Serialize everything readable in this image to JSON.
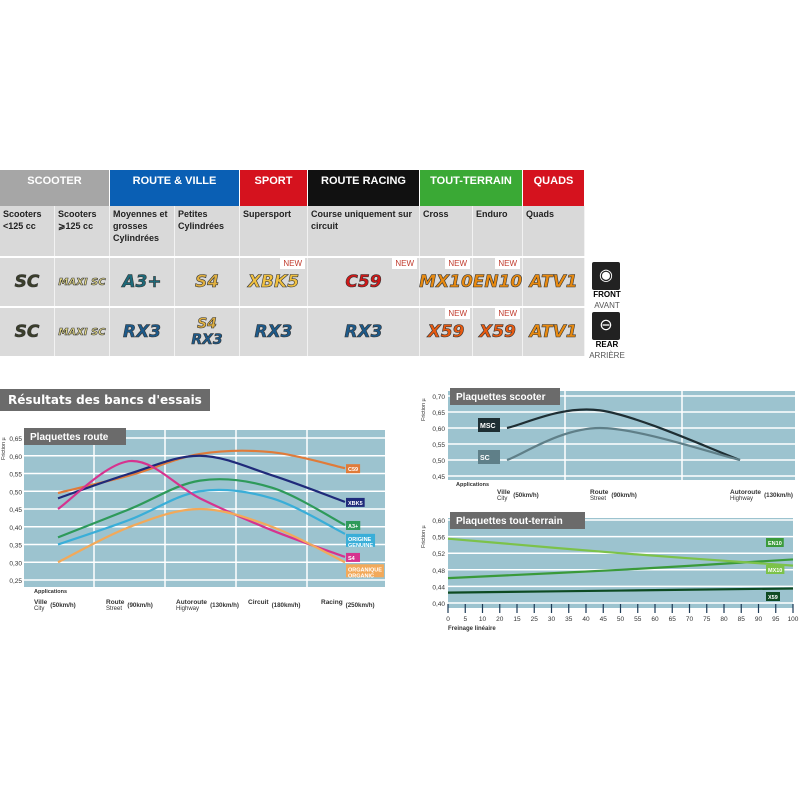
{
  "table": {
    "groups": [
      {
        "label": "SCOOTER",
        "color": "#a6a6a6"
      },
      {
        "label": "ROUTE & VILLE",
        "color": "#0a5fb4"
      },
      {
        "label": "SPORT",
        "color": "#d5121e"
      },
      {
        "label": "ROUTE RACING",
        "color": "#111111"
      },
      {
        "label": "TOUT-TERRAIN",
        "color": "#3aa935"
      },
      {
        "label": "QUADS",
        "color": "#d5121e"
      }
    ],
    "columns": [
      {
        "sub": "Scooters <125 cc",
        "front": "SC",
        "rear": "SC"
      },
      {
        "sub": "Scooters ⩾125 cc",
        "front": "MAXI SC",
        "rear": "MAXI SC"
      },
      {
        "sub": "Moyennes et grosses Cylindrées",
        "front": "A3+",
        "rear": "RX3"
      },
      {
        "sub": "Petites Cylindrées",
        "front": "S4",
        "rear": "S4",
        "rear2": "RX3"
      },
      {
        "sub": "Supersport",
        "front": "XBK5",
        "rear": "RX3",
        "front_new": "NEW"
      },
      {
        "sub": "Course uniquement sur circuit",
        "front": "C59",
        "rear": "RX3",
        "front_new": "NEW"
      },
      {
        "sub": "Cross",
        "front": "MX10",
        "rear": "X59",
        "front_new": "NEW",
        "rear_new": "NEW"
      },
      {
        "sub": "Enduro",
        "front": "EN10",
        "rear": "X59",
        "front_new": "NEW",
        "rear_new": "NEW"
      },
      {
        "sub": "Quads",
        "front": "ATV1",
        "rear": "ATV1"
      }
    ],
    "front": {
      "label": "FRONT",
      "sub": "AVANT",
      "icon": "front-brake-icon"
    },
    "rear": {
      "label": "REAR",
      "sub": "ARRIÈRE",
      "icon": "rear-brake-icon"
    }
  },
  "section_title": "Résultats des bancs d'essais",
  "chart_data": [
    {
      "type": "line",
      "title": "Plaquettes route",
      "ylabel": "Friction µ",
      "xlabel_prefix": "Applications",
      "categories": [
        {
          "main": "Ville",
          "alt": "City",
          "speed": "(50km/h)"
        },
        {
          "main": "Route",
          "alt": "Street",
          "speed": "(90km/h)"
        },
        {
          "main": "Autoroute",
          "alt": "Highway",
          "speed": "(130km/h)"
        },
        {
          "main": "Circuit",
          "alt": "",
          "speed": "(180km/h)"
        },
        {
          "main": "Racing",
          "alt": "",
          "speed": "(250km/h)"
        }
      ],
      "ylim": [
        0.25,
        0.65
      ],
      "yticks": [
        "0,25",
        "0,30",
        "0,35",
        "0,40",
        "0,45",
        "0,50",
        "0,55",
        "0,60",
        "0,65"
      ],
      "grid": true,
      "series": [
        {
          "name": "C59",
          "color": "#e07b39",
          "values": [
            0.495,
            0.545,
            0.605,
            0.61,
            0.565
          ]
        },
        {
          "name": "XBK5",
          "color": "#1f2a7a",
          "values": [
            0.48,
            0.55,
            0.6,
            0.545,
            0.47
          ]
        },
        {
          "name": "A3+",
          "color": "#2e9a5a",
          "values": [
            0.37,
            0.45,
            0.53,
            0.51,
            0.405
          ]
        },
        {
          "name": "ORIGINE GENUINE",
          "color": "#3aaed8",
          "values": [
            0.35,
            0.42,
            0.5,
            0.48,
            0.38
          ]
        },
        {
          "name": "S4",
          "color": "#d6338f",
          "values": [
            0.45,
            0.585,
            0.48,
            0.39,
            0.315
          ]
        },
        {
          "name": "ORGANIQUE ORGANIC",
          "color": "#f2a95a",
          "values": [
            0.3,
            0.4,
            0.45,
            0.4,
            0.3
          ]
        }
      ]
    },
    {
      "type": "line",
      "title": "Plaquettes scooter",
      "ylabel": "Friction µ",
      "xlabel_prefix": "Applications",
      "categories": [
        {
          "main": "Ville",
          "alt": "City",
          "speed": "(50km/h)"
        },
        {
          "main": "Route",
          "alt": "Street",
          "speed": "(90km/h)"
        },
        {
          "main": "Autoroute",
          "alt": "Highway",
          "speed": "(130km/h)"
        }
      ],
      "ylim": [
        0.45,
        0.7
      ],
      "yticks": [
        "0,45",
        "0,50",
        "0,55",
        "0,60",
        "0,65",
        "0,70"
      ],
      "grid": true,
      "series": [
        {
          "name": "MSC",
          "color": "#1e2e33",
          "values": [
            0.6,
            0.655,
            0.5
          ]
        },
        {
          "name": "SC",
          "color": "#5f7f88",
          "values": [
            0.5,
            0.6,
            0.5
          ]
        }
      ]
    },
    {
      "type": "line",
      "title": "Plaquettes tout-terrain",
      "ylabel": "Friction µ",
      "xlabel": "Freinage linéaire",
      "xticks": [
        "0",
        "5",
        "10",
        "20",
        "15",
        "25",
        "30",
        "35",
        "40",
        "45",
        "50",
        "55",
        "60",
        "65",
        "70",
        "75",
        "80",
        "85",
        "90",
        "95",
        "100"
      ],
      "xlim": [
        0,
        100
      ],
      "ylim": [
        0.4,
        0.6
      ],
      "yticks": [
        "0,40",
        "0,44",
        "0,48",
        "0,52",
        "0,56",
        "0,60"
      ],
      "grid": true,
      "series": [
        {
          "name": "EN10",
          "color": "#3a9a3a",
          "x": [
            0,
            50,
            100
          ],
          "values": [
            0.46,
            0.48,
            0.505
          ]
        },
        {
          "name": "MX10",
          "color": "#7cc24a",
          "x": [
            0,
            50,
            100
          ],
          "values": [
            0.555,
            0.52,
            0.49
          ]
        },
        {
          "name": "X59",
          "color": "#0d4a22",
          "x": [
            0,
            50,
            100
          ],
          "values": [
            0.425,
            0.43,
            0.435
          ]
        }
      ]
    }
  ]
}
